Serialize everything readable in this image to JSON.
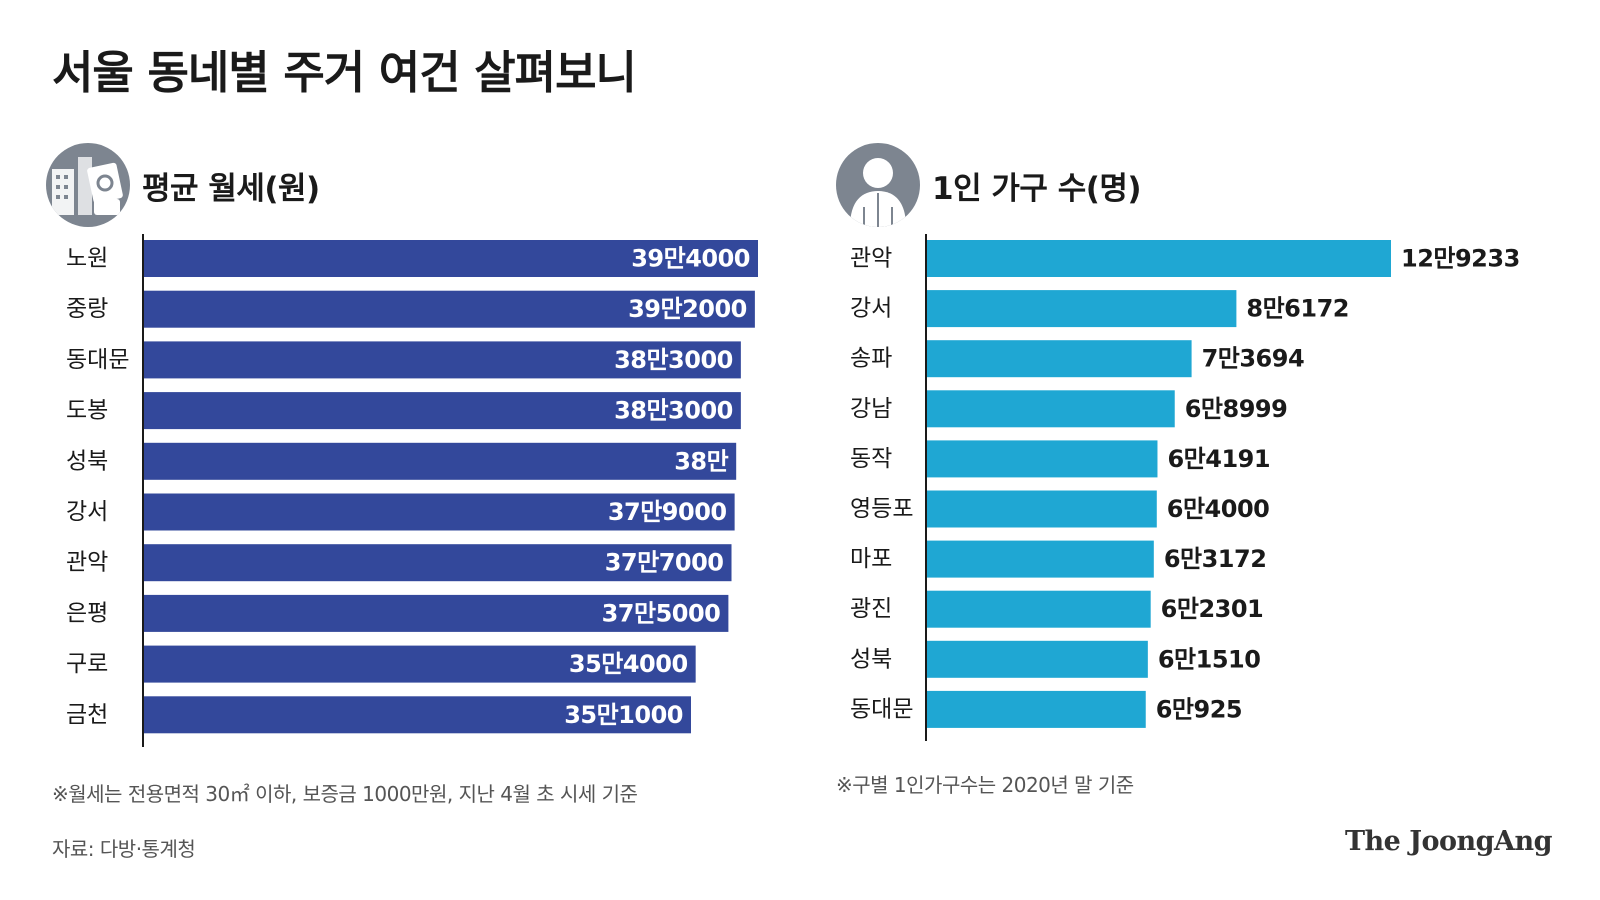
{
  "title": "서울 동네별 주거 여건 살펴보니",
  "colors": {
    "rent_bar": "#33489b",
    "pop_bar": "#1fa7d3",
    "icon_bg": "#7d8590"
  },
  "chart_data": [
    {
      "type": "bar",
      "orientation": "horizontal",
      "title": "평균 월세(원)",
      "icon": "city-money-icon",
      "categories": [
        "노원",
        "중랑",
        "동대문",
        "도봉",
        "성북",
        "강서",
        "관악",
        "은평",
        "구로",
        "금천"
      ],
      "values": [
        394000,
        392000,
        383000,
        383000,
        380000,
        379000,
        377000,
        375000,
        354000,
        351000
      ],
      "value_labels": [
        "39만4000",
        "39만2000",
        "38만3000",
        "38만3000",
        "38만",
        "37만9000",
        "37만7000",
        "37만5000",
        "35만4000",
        "35만1000"
      ],
      "label_position": "inside-end",
      "note": "※월세는 전용면적 30㎡ 이하, 보증금 1000만원, 지난 4월 초 시세 기준"
    },
    {
      "type": "bar",
      "orientation": "horizontal",
      "title": "1인 가구 수(명)",
      "icon": "person-icon",
      "categories": [
        "관악",
        "강서",
        "송파",
        "강남",
        "동작",
        "영등포",
        "마포",
        "광진",
        "성북",
        "동대문"
      ],
      "values": [
        129233,
        86172,
        73694,
        68999,
        64191,
        64000,
        63172,
        62301,
        61510,
        60925
      ],
      "value_labels": [
        "12만9233",
        "8만6172",
        "7만3694",
        "6만8999",
        "6만4191",
        "6만4000",
        "6만3172",
        "6만2301",
        "6만1510",
        "6만925"
      ],
      "label_position": "outside-end",
      "note": "※구별 1인가구수는 2020년 말 기준"
    }
  ],
  "source": "자료: 다방·통계청",
  "logo": "The JoongAng"
}
